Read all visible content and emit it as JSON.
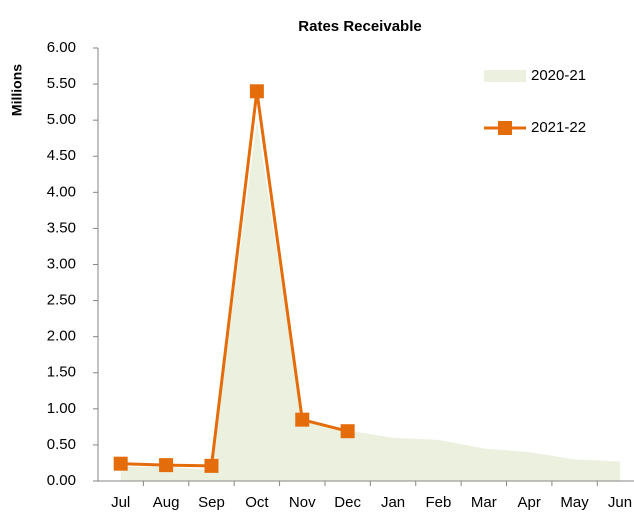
{
  "chart_data": {
    "type": "line",
    "title": "Rates Receivable",
    "y_label": "Millions",
    "categories": [
      "Jul",
      "Aug",
      "Sep",
      "Oct",
      "Nov",
      "Dec",
      "Jan",
      "Feb",
      "Mar",
      "Apr",
      "May",
      "Jun"
    ],
    "series": [
      {
        "name": "2020-21",
        "kind": "area",
        "color": "#ebf1de",
        "values": [
          0.2,
          0.2,
          0.15,
          5.0,
          0.85,
          0.7,
          0.6,
          0.57,
          0.45,
          0.4,
          0.3,
          0.27
        ]
      },
      {
        "name": "2021-22",
        "kind": "line",
        "color": "#e46c0a",
        "values": [
          0.24,
          0.22,
          0.21,
          5.4,
          0.85,
          0.69,
          null,
          null,
          null,
          null,
          null,
          null
        ]
      }
    ],
    "ylim": [
      0,
      6
    ],
    "yticks": [
      {
        "value": 0,
        "label": "0.00"
      },
      {
        "value": 0.5,
        "label": "0.50"
      },
      {
        "value": 1,
        "label": "1.00"
      },
      {
        "value": 1.5,
        "label": "1.50"
      },
      {
        "value": 2,
        "label": "2.00"
      },
      {
        "value": 2.5,
        "label": "2.50"
      },
      {
        "value": 3,
        "label": "3.00"
      },
      {
        "value": 3.5,
        "label": "3.50"
      },
      {
        "value": 4,
        "label": "4.00"
      },
      {
        "value": 4.5,
        "label": "4.50"
      },
      {
        "value": 5,
        "label": "5.00"
      },
      {
        "value": 5.5,
        "label": "5.50"
      },
      {
        "value": 6,
        "label": "6.00"
      }
    ],
    "legend": "top-right"
  }
}
